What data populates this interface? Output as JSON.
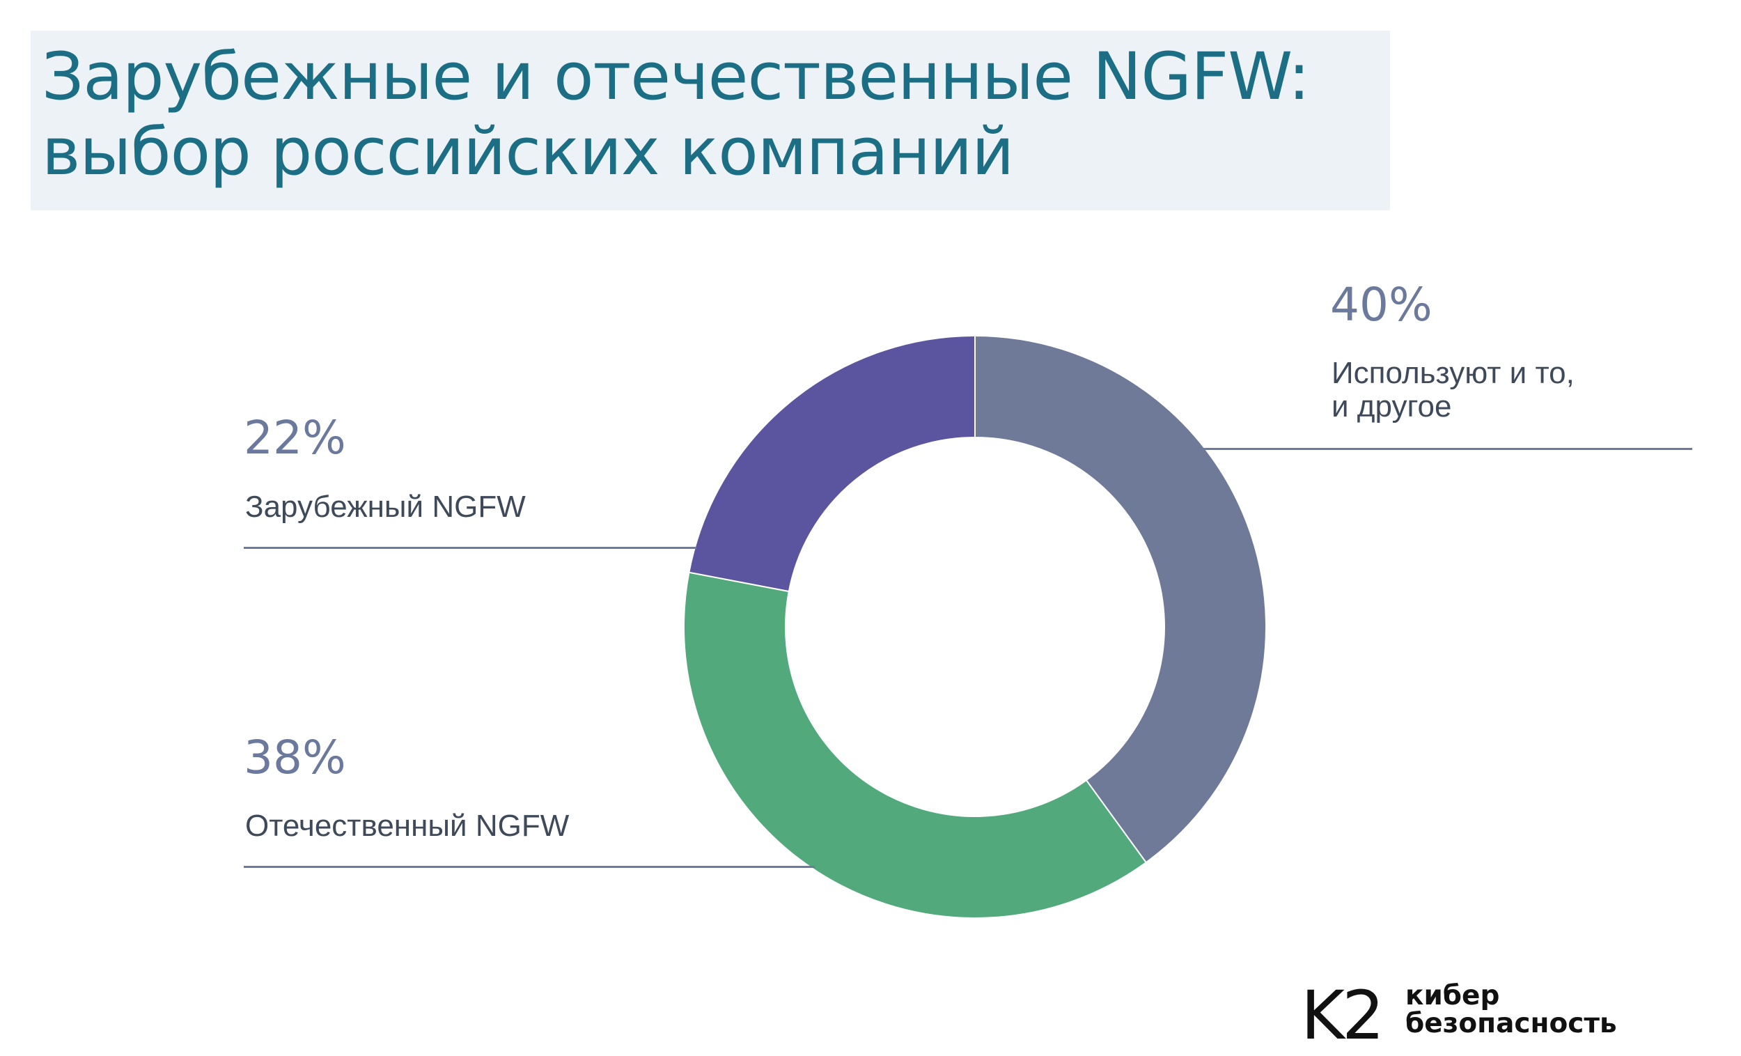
{
  "title": {
    "line1": "Зарубежные и отечественные NGFW:",
    "line2": "выбор российских компаний"
  },
  "chart_data": {
    "type": "pie",
    "title": "Зарубежные и отечественные NGFW: выбор российских компаний",
    "series": [
      {
        "name": "Используют и то, и другое",
        "value": 40,
        "label": "40%",
        "color": "#6e7a98"
      },
      {
        "name": "Отечественный NGFW",
        "value": 38,
        "label": "38%",
        "color": "#52a97b"
      },
      {
        "name": "Зарубежный NGFW",
        "value": 22,
        "label": "22%",
        "color": "#5b55a0"
      }
    ],
    "donut": true,
    "start_angle": "top",
    "direction": "clockwise",
    "legend": "callout labels"
  },
  "callouts": {
    "both": {
      "pct": "40%",
      "line1": "Используют и то,",
      "line2": "и другое"
    },
    "foreign": {
      "pct": "22%",
      "text": "Зарубежный NGFW"
    },
    "domestic": {
      "pct": "38%",
      "text": "Отечественный NGFW"
    }
  },
  "logo": {
    "mark": "K2",
    "line1": "кибер",
    "line2": "безопасность"
  },
  "icons": {
    "logo": "k2-logo-icon"
  }
}
